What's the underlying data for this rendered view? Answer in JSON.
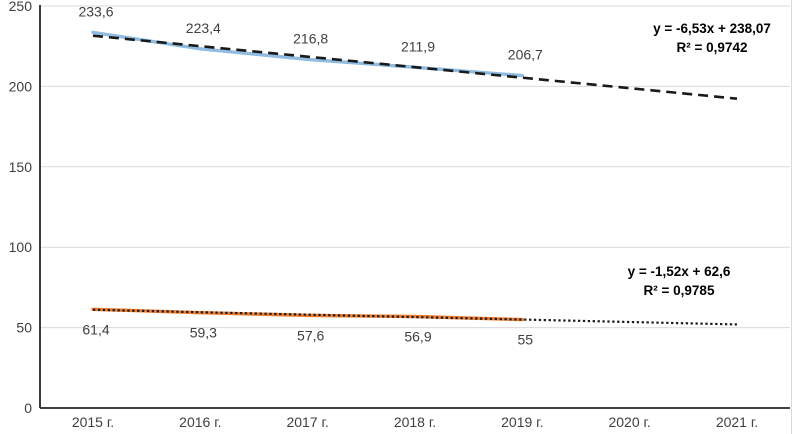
{
  "chart_data": {
    "type": "line",
    "title": "",
    "xlabel": "",
    "ylabel": "",
    "categories": [
      "2015 г.",
      "2016 г.",
      "2017 г.",
      "2018 г.",
      "2019 г.",
      "2020 г.",
      "2021 г."
    ],
    "ylim": [
      0,
      250
    ],
    "yticks": [
      0,
      50,
      100,
      150,
      200,
      250
    ],
    "ytick_labels": [
      "0",
      "50",
      "100",
      "150",
      "200",
      "250"
    ],
    "grid": "horizontal",
    "legend_position": "none",
    "axis_color": "#262626",
    "gridline_color": "#d9d9d9",
    "label_color": "#404040",
    "series": [
      {
        "name": "upper-series",
        "color": "#8fbce0",
        "x_indices": [
          0,
          1,
          2,
          3,
          4
        ],
        "values": [
          233.6,
          223.4,
          216.8,
          211.9,
          206.7
        ],
        "data_labels": [
          "233,6",
          "223,4",
          "216,8",
          "211,9",
          "206,7"
        ],
        "label_position": "above"
      },
      {
        "name": "lower-series",
        "color": "#ed7d31",
        "x_indices": [
          0,
          1,
          2,
          3,
          4
        ],
        "values": [
          61.4,
          59.3,
          57.6,
          56.9,
          55
        ],
        "data_labels": [
          "61,4",
          "59,3",
          "57,6",
          "56,9",
          "55"
        ],
        "label_position": "below"
      }
    ],
    "trendlines": [
      {
        "series": "upper-series",
        "style": "dashed",
        "color": "#1a1a1a",
        "slope": -6.53,
        "intercept": 238.07,
        "x_range": [
          1,
          7
        ],
        "equation": "y = -6,53x + 238,07",
        "r2": "R² = 0,9742"
      },
      {
        "series": "lower-series",
        "style": "dotted",
        "color": "#1a1a1a",
        "slope": -1.52,
        "intercept": 62.6,
        "x_range": [
          1,
          7
        ],
        "equation": "y = -1,52x + 62,6",
        "r2": "R² = 0,9785"
      }
    ]
  }
}
